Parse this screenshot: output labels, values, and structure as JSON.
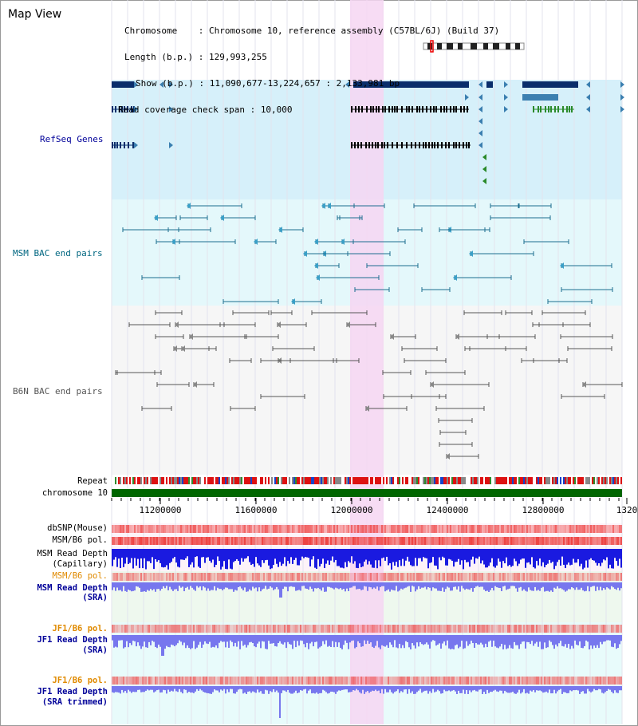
{
  "title": "Map View",
  "info": {
    "chromosome_key": "Chromosome    :",
    "chromosome_val": "Chromosome 10, reference assembly (C57BL/6J) (Build 37)",
    "length_key": "Length (b.p.) :",
    "length_val": "129,993,255",
    "show_key": "Show (b.p.) :",
    "show_val": "11,090,677-13,224,657 : 2,133,981 bp",
    "coverage_key": "Read coverage check span :",
    "coverage_val": "10,000"
  },
  "tracks": {
    "refseq": "RefSeq Genes",
    "msm_bac": "MSM BAC end pairs",
    "b6n_bac": "B6N BAC end pairs",
    "repeat": "Repeat",
    "chromosome": "chromosome 10",
    "dbsnp": "dbSNP(Mouse)",
    "msm_b6_pol_1": "MSM/B6 pol.",
    "msm_read_depth_cap_1": "MSM Read Depth",
    "msm_read_depth_cap_2": "(Capillary)",
    "msm_b6_pol_2": "MSM/B6 pol.",
    "msm_read_depth_sra_1": "MSM Read Depth",
    "msm_read_depth_sra_2": "(SRA)",
    "jf1_b6_pol_1": "JF1/B6 pol.",
    "jf1_read_depth_1": "JF1 Read Depth",
    "jf1_read_depth_2": "(SRA)",
    "jf1_b6_pol_2": "JF1/B6 pol.",
    "jf1_trim_1": "JF1 Read Depth",
    "jf1_trim_2": "(SRA trimmed)"
  },
  "axis": {
    "ticks": [
      "11200000",
      "11600000",
      "12000000",
      "12400000",
      "12800000",
      "1320"
    ]
  },
  "colors": {
    "refseq_bg": "#d6f0fa",
    "msm_bg": "#e4f8fb",
    "b6n_bg": "#f6f6f6",
    "highlight": "#f6d6f2",
    "chromosome_bar": "#006600",
    "gene_dark": "#0a2e6b",
    "gene_mid": "#3b7fb0",
    "gene_green": "#2a8a2a",
    "bac_msm": "#1d6e8f",
    "bac_b6n": "#555555",
    "depth_blue": "#1a1ae0",
    "depth_light": "#7777ee",
    "pol_red": "#ee4444",
    "label_navy": "#000099",
    "label_teal": "#006680",
    "label_orange": "#e08a00"
  }
}
